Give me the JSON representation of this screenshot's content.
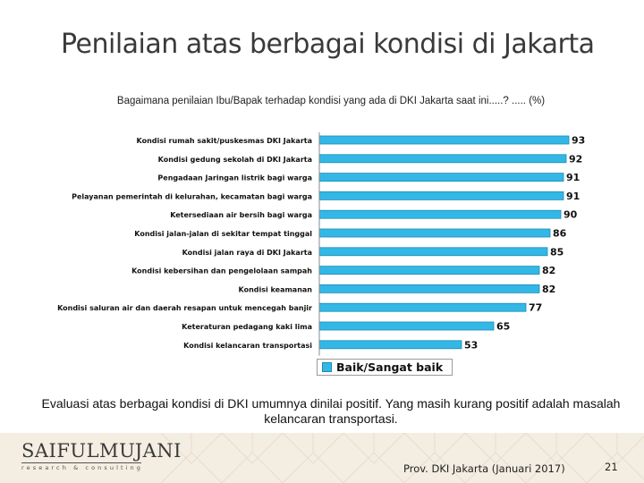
{
  "slide": {
    "title": "Penilaian atas berbagai kondisi di Jakarta",
    "question": "Bagaimana penilaian Ibu/Bapak terhadap kondisi yang ada di DKI Jakarta saat ini.....? ..... (%)",
    "summary": "Evaluasi atas berbagai kondisi di DKI umumnya dinilai positif. Yang masih kurang positif adalah masalah kelancaran transportasi.",
    "footer": "Prov. DKI Jakarta (Januari 2017)",
    "page_number": "21",
    "logo_main": "SAIFULMUJANI",
    "logo_sub": "research & consulting"
  },
  "colors": {
    "bar_fill": "#33b8e6",
    "bar_stroke": "#1b8ab6",
    "footer_band": "#f4ede2"
  },
  "chart_data": {
    "type": "bar",
    "orientation": "horizontal",
    "categories": [
      "Kondisi rumah sakit/puskesmas DKI Jakarta",
      "Kondisi gedung sekolah di DKI Jakarta",
      "Pengadaan Jaringan listrik bagi warga",
      "Pelayanan pemerintah di kelurahan, kecamatan bagi warga",
      "Ketersediaan air bersih bagi warga",
      "Kondisi jalan-jalan di sekitar tempat tinggal",
      "Kondisi jalan raya di DKI Jakarta",
      "Kondisi kebersihan dan pengelolaan sampah",
      "Kondisi keamanan",
      "Kondisi saluran air dan daerah resapan untuk mencegah banjir",
      "Keteraturan pedagang kaki lima",
      "Kondisi kelancaran transportasi"
    ],
    "series": [
      {
        "name": "Baik/Sangat baik",
        "values": [
          93,
          92,
          91,
          91,
          90,
          86,
          85,
          82,
          82,
          77,
          65,
          53
        ]
      }
    ],
    "xlim": [
      0,
      100
    ],
    "grid": false,
    "legend": "bottom-center",
    "data_labels": true
  }
}
